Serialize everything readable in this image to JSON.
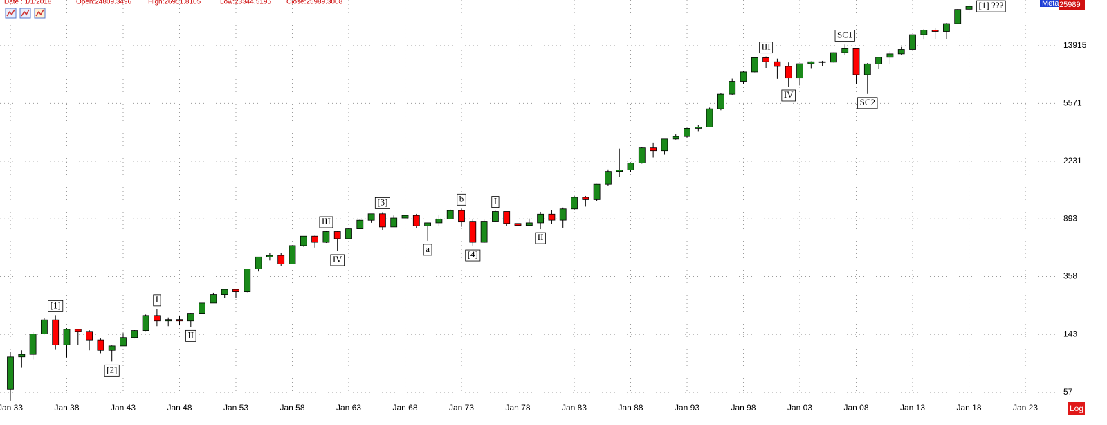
{
  "header": {
    "date": "Date : 1/1/2018",
    "open": "Open:24809.3496",
    "high": "High:26951.8105",
    "low": "Low:23344.5195",
    "close": "Close:25989.3008"
  },
  "symbol_label": "Meta",
  "last_label": "25989",
  "scale_label": "Log",
  "chart_data": {
    "type": "candlestick",
    "log_scale": true,
    "grid": true,
    "up_color": "#1a8a1a",
    "down_color": "#ff0000",
    "x": [
      1933,
      1934,
      1935,
      1936,
      1937,
      1938,
      1939,
      1940,
      1941,
      1942,
      1943,
      1944,
      1945,
      1946,
      1947,
      1948,
      1949,
      1950,
      1951,
      1952,
      1953,
      1954,
      1955,
      1956,
      1957,
      1958,
      1959,
      1960,
      1961,
      1962,
      1963,
      1964,
      1965,
      1966,
      1967,
      1968,
      1969,
      1970,
      1971,
      1972,
      1973,
      1974,
      1975,
      1976,
      1977,
      1978,
      1979,
      1980,
      1981,
      1982,
      1983,
      1984,
      1985,
      1986,
      1987,
      1988,
      1989,
      1990,
      1991,
      1992,
      1993,
      1994,
      1995,
      1996,
      1997,
      1998,
      1999,
      2000,
      2001,
      2002,
      2003,
      2004,
      2005,
      2006,
      2007,
      2008,
      2009,
      2010,
      2011,
      2012,
      2013,
      2014,
      2015,
      2016,
      2017,
      2018
    ],
    "open": [
      60,
      100,
      104,
      144,
      180,
      121,
      155,
      150,
      131,
      111,
      119,
      136,
      152,
      193,
      177,
      181,
      177,
      200,
      235,
      269,
      292,
      281,
      404,
      488,
      500,
      436,
      584,
      679,
      616,
      731,
      652,
      763,
      874,
      969,
      786,
      905,
      944,
      800,
      839,
      890,
      1020,
      851,
      616,
      852,
      1005,
      831,
      805,
      839,
      964,
      875,
      1047,
      1259,
      1212,
      1547,
      1896,
      1939,
      2169,
      2753,
      2634,
      3169,
      3301,
      3754,
      3834,
      5117,
      6448,
      7908,
      9181,
      11497,
      10787,
      10022,
      8342,
      10454,
      10783,
      10718,
      12463,
      13265,
      8776,
      10428,
      11578,
      12218,
      13104,
      16577,
      17823,
      17425,
      19763,
      24809.3496
    ],
    "high": [
      108,
      111,
      149,
      185,
      194,
      158,
      156,
      153,
      134,
      120,
      146,
      153,
      196,
      213,
      187,
      193,
      201,
      236,
      277,
      292,
      294,
      404,
      488,
      521,
      520,
      584,
      679,
      685,
      735,
      734,
      767,
      891,
      969,
      995,
      943,
      985,
      968,
      842,
      951,
      1036,
      1052,
      892,
      882,
      1015,
      1005,
      908,
      898,
      1000,
      1024,
      1070,
      1287,
      1287,
      1553,
      1956,
      2722,
      2184,
      2791,
      2999,
      3169,
      3413,
      3794,
      3978,
      5216,
      6560,
      8259,
      9374,
      11497,
      11723,
      11338,
      10673,
      10454,
      10855,
      10941,
      12511,
      14165,
      13279,
      10580,
      11625,
      12876,
      13661,
      16588,
      18103,
      18351,
      19988,
      24876,
      26951.8105
    ],
    "low": [
      50,
      85,
      96,
      143,
      113,
      99,
      121,
      111,
      106,
      93,
      119,
      134,
      151,
      163,
      163,
      165,
      161,
      197,
      235,
      256,
      255,
      279,
      388,
      462,
      420,
      436,
      574,
      566,
      610,
      535,
      647,
      763,
      840,
      744,
      786,
      825,
      769,
      631,
      798,
      889,
      788,
      577,
      610,
      850,
      800,
      742,
      796,
      759,
      824,
      777,
      1027,
      1086,
      1185,
      1502,
      1739,
      1879,
      2144,
      2365,
      2470,
      3137,
      3242,
      3593,
      3832,
      5000,
      6391,
      7539,
      9120,
      9796,
      8236,
      7286,
      7416,
      9750,
      10012,
      10668,
      12050,
      7552,
      6470,
      9614,
      10404,
      12036,
      13104,
      15340,
      15370,
      15450,
      19677,
      23344.5195
    ],
    "close": [
      99.9,
      104,
      144,
      180,
      121,
      155,
      150,
      131,
      111,
      119,
      136,
      152,
      193,
      177,
      181,
      177,
      200,
      235,
      269,
      292,
      281,
      404,
      488,
      500,
      436,
      584,
      679,
      616,
      731,
      652,
      763,
      874,
      969,
      786,
      905,
      944,
      800,
      839,
      890,
      1020,
      851,
      616,
      852,
      1005,
      831,
      805,
      839,
      964,
      875,
      1047,
      1259,
      1212,
      1547,
      1896,
      1939,
      2169,
      2753,
      2634,
      3169,
      3301,
      3754,
      3834,
      5117,
      6448,
      7908,
      9181,
      11497,
      10787,
      10022,
      8342,
      10454,
      10783,
      10718,
      12463,
      13265,
      8776,
      10428,
      11578,
      12218,
      13104,
      16577,
      17823,
      17425,
      19763,
      24719,
      25989.3008
    ],
    "xlim": [
      1932.08,
      2026.25
    ],
    "xticks": [
      {
        "value": 1933,
        "label": "Jan 33"
      },
      {
        "value": 1938,
        "label": "Jan 38"
      },
      {
        "value": 1943,
        "label": "Jan 43"
      },
      {
        "value": 1948,
        "label": "Jan 48"
      },
      {
        "value": 1953,
        "label": "Jan 53"
      },
      {
        "value": 1958,
        "label": "Jan 58"
      },
      {
        "value": 1963,
        "label": "Jan 63"
      },
      {
        "value": 1968,
        "label": "Jan 68"
      },
      {
        "value": 1973,
        "label": "Jan 73"
      },
      {
        "value": 1978,
        "label": "Jan 78"
      },
      {
        "value": 1983,
        "label": "Jan 83"
      },
      {
        "value": 1988,
        "label": "Jan 88"
      },
      {
        "value": 1993,
        "label": "Jan 93"
      },
      {
        "value": 1998,
        "label": "Jan 98"
      },
      {
        "value": 2003,
        "label": "Jan 03"
      },
      {
        "value": 2008,
        "label": "Jan 08"
      },
      {
        "value": 2013,
        "label": "Jan 13"
      },
      {
        "value": 2018,
        "label": "Jan 18"
      },
      {
        "value": 2023,
        "label": "Jan 23"
      }
    ],
    "ylim": [
      50.5,
      28720
    ],
    "yticks": [
      57,
      143,
      358,
      893,
      2231,
      5571,
      13915
    ],
    "annotations": [
      {
        "text": "[1]",
        "x": 1937,
        "position": "above"
      },
      {
        "text": "[2]",
        "x": 1942,
        "position": "below"
      },
      {
        "text": "I",
        "x": 1946,
        "position": "above"
      },
      {
        "text": "II",
        "x": 1949,
        "position": "below"
      },
      {
        "text": "III",
        "x": 1961,
        "position": "above"
      },
      {
        "text": "IV",
        "x": 1962,
        "position": "below"
      },
      {
        "text": "[3]",
        "x": 1966,
        "position": "above"
      },
      {
        "text": "a",
        "x": 1970,
        "position": "below"
      },
      {
        "text": "b",
        "x": 1973,
        "position": "above"
      },
      {
        "text": "[4]",
        "x": 1974,
        "position": "below"
      },
      {
        "text": "I",
        "x": 1976,
        "position": "above"
      },
      {
        "text": "II",
        "x": 1980,
        "position": "below"
      },
      {
        "text": "III",
        "x": 2000,
        "position": "above"
      },
      {
        "text": "IV",
        "x": 2002,
        "position": "below"
      },
      {
        "text": "SC1",
        "x": 2007,
        "position": "above"
      },
      {
        "text": "SC2",
        "x": 2009,
        "position": "below"
      },
      {
        "text": "[1] ???",
        "x": 2018,
        "position": "right"
      }
    ]
  }
}
